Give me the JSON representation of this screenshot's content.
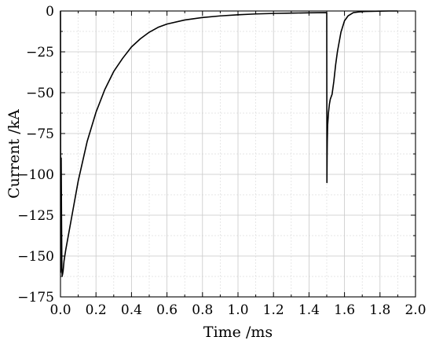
{
  "chart_data": {
    "type": "line",
    "title": "",
    "xlabel": "Time /ms",
    "ylabel": "Current /kA",
    "xlim": [
      0,
      2.0
    ],
    "ylim": [
      -175,
      0
    ],
    "xticks": [
      0.0,
      0.2,
      0.4,
      0.6,
      0.8,
      1.0,
      1.2,
      1.4,
      1.6,
      1.8,
      2.0
    ],
    "xtick_labels": [
      "0.0",
      "0.2",
      "0.4",
      "0.6",
      "0.8",
      "1.0",
      "1.2",
      "1.4",
      "1.6",
      "1.8",
      "2.0"
    ],
    "yticks": [
      0,
      -25,
      -50,
      -75,
      -100,
      -125,
      -150,
      -175
    ],
    "ytick_labels": [
      "0",
      "−25",
      "−50",
      "−75",
      "−100",
      "−125",
      "−150",
      "−175"
    ],
    "grid": true,
    "minor_grid": true,
    "series": [
      {
        "color": "#000000",
        "x": [
          0.0,
          0.001,
          0.002,
          0.004,
          0.006,
          0.008,
          0.01,
          0.012,
          0.015,
          0.02,
          0.03,
          0.05,
          0.08,
          0.1,
          0.15,
          0.2,
          0.25,
          0.3,
          0.35,
          0.4,
          0.45,
          0.5,
          0.55,
          0.6,
          0.7,
          0.8,
          0.9,
          1.0,
          1.1,
          1.2,
          1.3,
          1.4,
          1.5,
          1.501,
          1.502,
          1.503,
          1.505,
          1.51,
          1.515,
          1.52,
          1.53,
          1.54,
          1.55,
          1.56,
          1.58,
          1.6,
          1.62,
          1.65,
          1.68,
          1.7,
          1.72,
          1.75,
          1.8,
          1.85,
          1.9
        ],
        "y": [
          0.0,
          -160.0,
          -120.0,
          -90.0,
          -128.0,
          -158.0,
          -162.0,
          -161.0,
          -159.0,
          -153.0,
          -146.0,
          -134.0,
          -116.0,
          -104.0,
          -80.0,
          -62.0,
          -48.0,
          -37.0,
          -29.0,
          -22.0,
          -17.0,
          -13.0,
          -10.0,
          -8.0,
          -5.5,
          -4.0,
          -3.0,
          -2.3,
          -1.8,
          -1.5,
          -1.3,
          -1.1,
          -1.0,
          -105.0,
          -90.0,
          -80.0,
          -70.0,
          -62.0,
          -57.0,
          -54.0,
          -51.0,
          -43.0,
          -33.0,
          -25.0,
          -13.0,
          -6.0,
          -3.0,
          -1.0,
          -0.6,
          -0.4,
          -0.3,
          -0.2,
          -0.1,
          0.0,
          0.0
        ]
      }
    ]
  }
}
